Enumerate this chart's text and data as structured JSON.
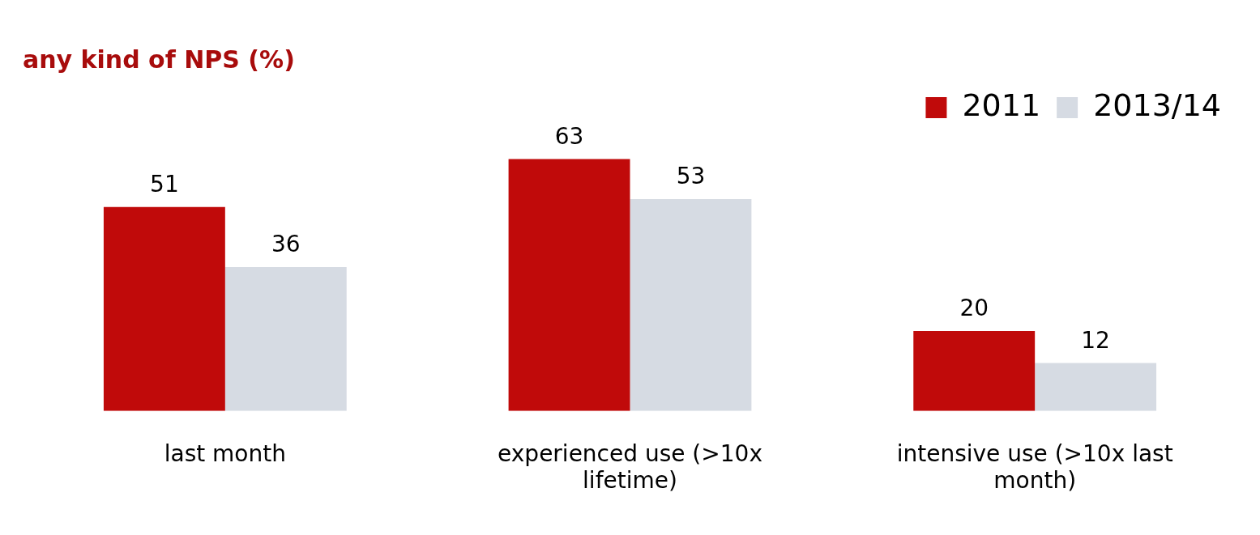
{
  "chart_data": {
    "type": "bar",
    "title": "any kind of NPS (%)",
    "categories": [
      "last month",
      "experienced use (>10x lifetime)",
      "intensive use (>10x last month)"
    ],
    "series": [
      {
        "name": "2011",
        "color": "#c00a0a",
        "values": [
          51,
          63,
          20
        ]
      },
      {
        "name": "2013/14",
        "color": "#d6dbe3",
        "values": [
          36,
          53,
          12
        ]
      }
    ],
    "data_labels": true,
    "legend": "top right"
  }
}
